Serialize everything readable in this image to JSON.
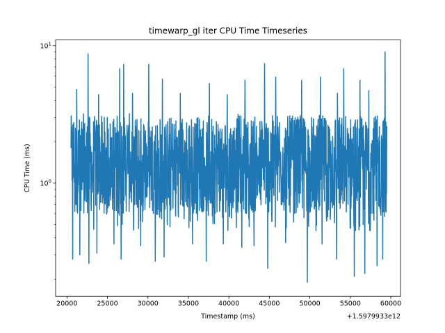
{
  "chart_data": {
    "type": "line",
    "title": "timewarp_gl iter CPU Time Timeseries",
    "xlabel": "Timestamp (ms)",
    "ylabel": "CPU Time (ms)",
    "x_offset_label": "+1.5979933e12",
    "xlim": [
      18600,
      61200
    ],
    "ylim": [
      0.15,
      11.0
    ],
    "yscale": "log",
    "grid": false,
    "x_ticks": [
      20000,
      25000,
      30000,
      35000,
      40000,
      45000,
      50000,
      55000,
      60000
    ],
    "x_tick_labels": [
      "20000",
      "25000",
      "30000",
      "35000",
      "40000",
      "45000",
      "50000",
      "55000",
      "60000"
    ],
    "y_major_ticks": [
      {
        "value": 1,
        "base": "10",
        "exp": "0"
      },
      {
        "value": 10,
        "base": "10",
        "exp": "1"
      }
    ],
    "y_minor_ticks": [
      0.2,
      0.3,
      0.4,
      0.5,
      0.6,
      0.7,
      0.8,
      0.9,
      2,
      3,
      4,
      5,
      6,
      7,
      8,
      9
    ],
    "line_color": "#1f77b4",
    "series": [
      {
        "x_start": 20500,
        "x_end": 59500,
        "band_low": 0.6,
        "band_high": 3.1,
        "peaks": [
          {
            "x": 21200,
            "y": 4.8
          },
          {
            "x": 22600,
            "y": 8.7
          },
          {
            "x": 23900,
            "y": 4.4
          },
          {
            "x": 26500,
            "y": 6.8
          },
          {
            "x": 27000,
            "y": 7.3
          },
          {
            "x": 28100,
            "y": 4.5
          },
          {
            "x": 30100,
            "y": 7.3
          },
          {
            "x": 31800,
            "y": 5.7
          },
          {
            "x": 34000,
            "y": 4.5
          },
          {
            "x": 37600,
            "y": 5.3
          },
          {
            "x": 39800,
            "y": 4.4
          },
          {
            "x": 42000,
            "y": 5.6
          },
          {
            "x": 44400,
            "y": 7.4
          },
          {
            "x": 45800,
            "y": 5.9
          },
          {
            "x": 49000,
            "y": 5.6
          },
          {
            "x": 51300,
            "y": 5.9
          },
          {
            "x": 53400,
            "y": 4.5
          },
          {
            "x": 54200,
            "y": 6.8
          },
          {
            "x": 56200,
            "y": 5.6
          },
          {
            "x": 57300,
            "y": 4.7
          },
          {
            "x": 59300,
            "y": 9.0
          }
        ],
        "dips": [
          {
            "x": 20700,
            "y": 0.28
          },
          {
            "x": 21600,
            "y": 0.3
          },
          {
            "x": 22700,
            "y": 0.26
          },
          {
            "x": 23700,
            "y": 0.31
          },
          {
            "x": 25800,
            "y": 0.36
          },
          {
            "x": 26700,
            "y": 0.28
          },
          {
            "x": 29100,
            "y": 0.35
          },
          {
            "x": 30900,
            "y": 0.27
          },
          {
            "x": 32000,
            "y": 0.29
          },
          {
            "x": 35500,
            "y": 0.36
          },
          {
            "x": 37200,
            "y": 0.27
          },
          {
            "x": 39300,
            "y": 0.36
          },
          {
            "x": 41600,
            "y": 0.34
          },
          {
            "x": 43100,
            "y": 0.35
          },
          {
            "x": 44800,
            "y": 0.24
          },
          {
            "x": 47000,
            "y": 0.37
          },
          {
            "x": 49700,
            "y": 0.19
          },
          {
            "x": 51500,
            "y": 0.36
          },
          {
            "x": 53300,
            "y": 0.28
          },
          {
            "x": 55500,
            "y": 0.21
          },
          {
            "x": 56800,
            "y": 0.22
          },
          {
            "x": 58300,
            "y": 0.25
          },
          {
            "x": 59000,
            "y": 0.28
          }
        ]
      }
    ]
  }
}
